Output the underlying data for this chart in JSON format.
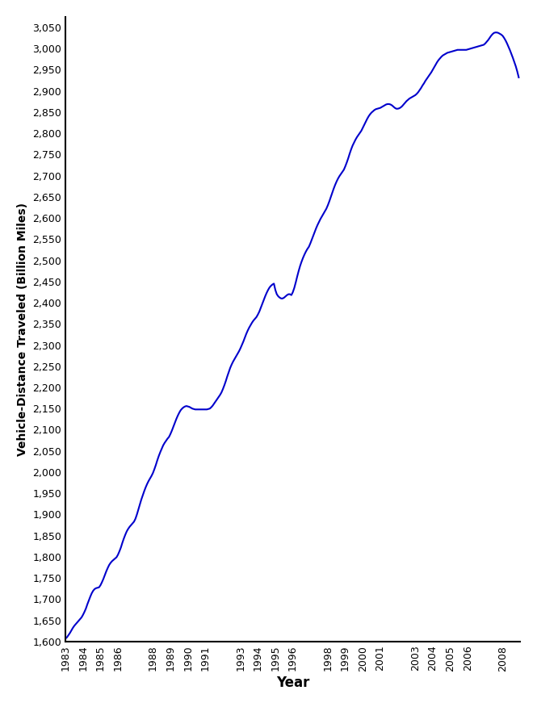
{
  "xlabel": "Year",
  "ylabel": "Vehicle-Distance Traveled (Billion Miles)",
  "line_color": "#0000CC",
  "line_width": 1.5,
  "background_color": "#ffffff",
  "ylim": [
    1600,
    3075
  ],
  "x_tick_labels": [
    "1983",
    "1984",
    "1985",
    "1986",
    "1988",
    "1989",
    "1990",
    "1991",
    "1993",
    "1994",
    "1995",
    "1996",
    "1998",
    "1999",
    "2000",
    "2001",
    "2003",
    "2004",
    "2005",
    "2006",
    "2008"
  ],
  "data_x": [
    1983.0,
    1983.083,
    1983.167,
    1983.25,
    1983.333,
    1983.417,
    1983.5,
    1983.583,
    1983.667,
    1983.75,
    1983.833,
    1983.917,
    1984.0,
    1984.083,
    1984.167,
    1984.25,
    1984.333,
    1984.417,
    1984.5,
    1984.583,
    1984.667,
    1984.75,
    1984.833,
    1984.917,
    1985.0,
    1985.083,
    1985.167,
    1985.25,
    1985.333,
    1985.417,
    1985.5,
    1985.583,
    1985.667,
    1985.75,
    1985.833,
    1985.917,
    1986.0,
    1986.083,
    1986.167,
    1986.25,
    1986.333,
    1986.417,
    1986.5,
    1986.583,
    1986.667,
    1986.75,
    1986.833,
    1986.917,
    1987.0,
    1987.083,
    1987.167,
    1987.25,
    1987.333,
    1987.417,
    1987.5,
    1987.583,
    1987.667,
    1987.75,
    1987.833,
    1987.917,
    1988.0,
    1988.083,
    1988.167,
    1988.25,
    1988.333,
    1988.417,
    1988.5,
    1988.583,
    1988.667,
    1988.75,
    1988.833,
    1988.917,
    1989.0,
    1989.083,
    1989.167,
    1989.25,
    1989.333,
    1989.417,
    1989.5,
    1989.583,
    1989.667,
    1989.75,
    1989.833,
    1989.917,
    1990.0,
    1990.083,
    1990.167,
    1990.25,
    1990.333,
    1990.417,
    1990.5,
    1990.583,
    1990.667,
    1990.75,
    1990.833,
    1990.917,
    1991.0,
    1991.083,
    1991.167,
    1991.25,
    1991.333,
    1991.417,
    1991.5,
    1991.583,
    1991.667,
    1991.75,
    1991.833,
    1991.917,
    1992.0,
    1992.083,
    1992.167,
    1992.25,
    1992.333,
    1992.417,
    1992.5,
    1992.583,
    1992.667,
    1992.75,
    1992.833,
    1992.917,
    1993.0,
    1993.083,
    1993.167,
    1993.25,
    1993.333,
    1993.417,
    1993.5,
    1993.583,
    1993.667,
    1993.75,
    1993.833,
    1993.917,
    1994.0,
    1994.083,
    1994.167,
    1994.25,
    1994.333,
    1994.417,
    1994.5,
    1994.583,
    1994.667,
    1994.75,
    1994.833,
    1994.917,
    1995.0,
    1995.083,
    1995.167,
    1995.25,
    1995.333,
    1995.417,
    1995.5,
    1995.583,
    1995.667,
    1995.75,
    1995.833,
    1995.917,
    1996.0,
    1996.083,
    1996.167,
    1996.25,
    1996.333,
    1996.417,
    1996.5,
    1996.583,
    1996.667,
    1996.75,
    1996.833,
    1996.917,
    1997.0,
    1997.083,
    1997.167,
    1997.25,
    1997.333,
    1997.417,
    1997.5,
    1997.583,
    1997.667,
    1997.75,
    1997.833,
    1997.917,
    1998.0,
    1998.083,
    1998.167,
    1998.25,
    1998.333,
    1998.417,
    1998.5,
    1998.583,
    1998.667,
    1998.75,
    1998.833,
    1998.917,
    1999.0,
    1999.083,
    1999.167,
    1999.25,
    1999.333,
    1999.417,
    1999.5,
    1999.583,
    1999.667,
    1999.75,
    1999.833,
    1999.917,
    2000.0,
    2000.083,
    2000.167,
    2000.25,
    2000.333,
    2000.417,
    2000.5,
    2000.583,
    2000.667,
    2000.75,
    2000.833,
    2000.917,
    2001.0,
    2001.083,
    2001.167,
    2001.25,
    2001.333,
    2001.417,
    2001.5,
    2001.583,
    2001.667,
    2001.75,
    2001.833,
    2001.917,
    2002.0,
    2002.083,
    2002.167,
    2002.25,
    2002.333,
    2002.417,
    2002.5,
    2002.583,
    2002.667,
    2002.75,
    2002.833,
    2002.917,
    2003.0,
    2003.083,
    2003.167,
    2003.25,
    2003.333,
    2003.417,
    2003.5,
    2003.583,
    2003.667,
    2003.75,
    2003.833,
    2003.917,
    2004.0,
    2004.083,
    2004.167,
    2004.25,
    2004.333,
    2004.417,
    2004.5,
    2004.583,
    2004.667,
    2004.75,
    2004.833,
    2004.917,
    2005.0,
    2005.083,
    2005.167,
    2005.25,
    2005.333,
    2005.417,
    2005.5,
    2005.583,
    2005.667,
    2005.75,
    2005.833,
    2005.917,
    2006.0,
    2006.083,
    2006.167,
    2006.25,
    2006.333,
    2006.417,
    2006.5,
    2006.583,
    2006.667,
    2006.75,
    2006.833,
    2006.917,
    2007.0,
    2007.083,
    2007.167,
    2007.25,
    2007.333,
    2007.417,
    2007.5,
    2007.583,
    2007.667,
    2007.75,
    2007.833,
    2007.917,
    2008.0,
    2008.083,
    2008.167,
    2008.25,
    2008.333,
    2008.417,
    2008.5,
    2008.583,
    2008.667,
    2008.75,
    2008.833,
    2008.917
  ],
  "data_y": [
    1607,
    1610,
    1615,
    1620,
    1626,
    1632,
    1637,
    1641,
    1645,
    1649,
    1653,
    1657,
    1663,
    1670,
    1678,
    1688,
    1697,
    1706,
    1714,
    1720,
    1724,
    1726,
    1727,
    1728,
    1733,
    1740,
    1748,
    1757,
    1766,
    1774,
    1781,
    1786,
    1790,
    1793,
    1796,
    1799,
    1805,
    1813,
    1822,
    1833,
    1843,
    1852,
    1860,
    1866,
    1871,
    1875,
    1879,
    1883,
    1890,
    1900,
    1912,
    1924,
    1935,
    1945,
    1955,
    1964,
    1972,
    1979,
    1985,
    1991,
    1998,
    2007,
    2017,
    2028,
    2038,
    2047,
    2055,
    2063,
    2069,
    2074,
    2079,
    2083,
    2090,
    2098,
    2107,
    2116,
    2125,
    2133,
    2140,
    2146,
    2150,
    2153,
    2155,
    2156,
    2155,
    2154,
    2152,
    2150,
    2149,
    2148,
    2148,
    2148,
    2148,
    2148,
    2148,
    2148,
    2148,
    2148,
    2149,
    2150,
    2153,
    2157,
    2162,
    2167,
    2172,
    2177,
    2182,
    2188,
    2196,
    2205,
    2215,
    2226,
    2236,
    2246,
    2254,
    2261,
    2267,
    2273,
    2279,
    2285,
    2292,
    2300,
    2308,
    2317,
    2326,
    2334,
    2341,
    2347,
    2353,
    2358,
    2362,
    2366,
    2372,
    2379,
    2388,
    2397,
    2406,
    2415,
    2423,
    2430,
    2436,
    2440,
    2443,
    2445,
    2430,
    2420,
    2415,
    2412,
    2410,
    2410,
    2412,
    2415,
    2418,
    2420,
    2420,
    2418,
    2425,
    2435,
    2448,
    2462,
    2475,
    2487,
    2497,
    2506,
    2514,
    2521,
    2527,
    2532,
    2540,
    2549,
    2558,
    2567,
    2576,
    2584,
    2591,
    2598,
    2604,
    2610,
    2616,
    2622,
    2630,
    2639,
    2649,
    2659,
    2669,
    2678,
    2686,
    2693,
    2699,
    2704,
    2709,
    2714,
    2722,
    2731,
    2741,
    2752,
    2762,
    2771,
    2778,
    2785,
    2791,
    2796,
    2801,
    2806,
    2813,
    2820,
    2827,
    2834,
    2840,
    2845,
    2849,
    2852,
    2855,
    2857,
    2858,
    2859,
    2860,
    2862,
    2864,
    2866,
    2868,
    2869,
    2869,
    2868,
    2866,
    2863,
    2860,
    2858,
    2858,
    2859,
    2861,
    2864,
    2868,
    2872,
    2876,
    2879,
    2882,
    2884,
    2886,
    2888,
    2890,
    2893,
    2897,
    2902,
    2907,
    2913,
    2918,
    2924,
    2929,
    2934,
    2939,
    2944,
    2950,
    2956,
    2962,
    2968,
    2973,
    2977,
    2981,
    2984,
    2986,
    2988,
    2990,
    2991,
    2992,
    2993,
    2994,
    2995,
    2996,
    2997,
    2997,
    2997,
    2997,
    2997,
    2997,
    2997,
    2998,
    2999,
    3000,
    3001,
    3002,
    3003,
    3004,
    3005,
    3006,
    3007,
    3008,
    3009,
    3012,
    3016,
    3020,
    3025,
    3030,
    3034,
    3037,
    3038,
    3038,
    3037,
    3035,
    3033,
    3030,
    3025,
    3019,
    3012,
    3004,
    2996,
    2987,
    2978,
    2968,
    2958,
    2946,
    2932
  ]
}
